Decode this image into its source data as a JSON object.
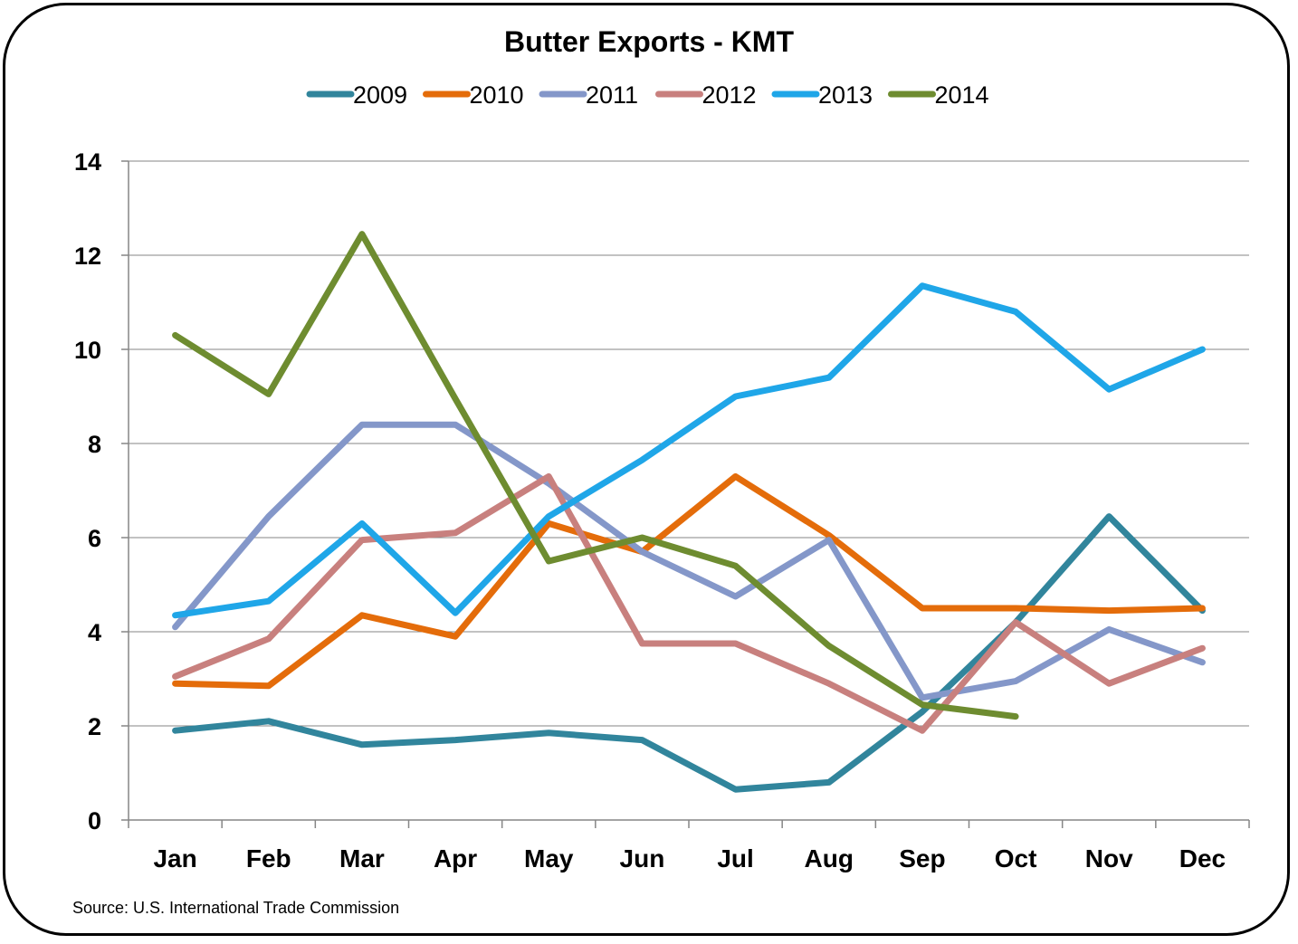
{
  "chart_data": {
    "type": "line",
    "title": "Butter Exports - KMT",
    "xlabel": "",
    "ylabel": "",
    "categories": [
      "Jan",
      "Feb",
      "Mar",
      "Apr",
      "May",
      "Jun",
      "Jul",
      "Aug",
      "Sep",
      "Oct",
      "Nov",
      "Dec"
    ],
    "ylim": [
      0,
      14
    ],
    "yticks": [
      0,
      2,
      4,
      6,
      8,
      10,
      12,
      14
    ],
    "grid": true,
    "legend_position": "top",
    "series": [
      {
        "name": "2009",
        "color": "#31859C",
        "values": [
          1.9,
          2.1,
          1.6,
          1.7,
          1.85,
          1.7,
          0.65,
          0.8,
          2.3,
          4.2,
          6.45,
          4.45
        ]
      },
      {
        "name": "2010",
        "color": "#E46C0A",
        "values": [
          2.9,
          2.85,
          4.35,
          3.9,
          6.3,
          5.7,
          7.3,
          6.05,
          4.5,
          4.5,
          4.45,
          4.5
        ]
      },
      {
        "name": "2011",
        "color": "#8497C9",
        "values": [
          4.1,
          6.45,
          8.4,
          8.4,
          7.15,
          5.7,
          4.75,
          5.95,
          2.6,
          2.95,
          4.05,
          3.35
        ]
      },
      {
        "name": "2012",
        "color": "#C8807E",
        "values": [
          3.05,
          3.85,
          5.95,
          6.1,
          7.3,
          3.75,
          3.75,
          2.9,
          1.9,
          4.2,
          2.9,
          3.65
        ]
      },
      {
        "name": "2013",
        "color": "#1FA6E8",
        "values": [
          4.35,
          4.65,
          6.3,
          4.4,
          6.45,
          7.65,
          9.0,
          9.4,
          11.35,
          10.8,
          9.15,
          10.0
        ]
      },
      {
        "name": "2014",
        "color": "#6E8C30",
        "values": [
          10.3,
          9.05,
          12.45,
          8.95,
          5.5,
          6.0,
          5.4,
          3.7,
          2.45,
          2.2,
          null,
          null
        ]
      }
    ],
    "annotations": [
      "Source: U.S. International Trade Commission"
    ]
  }
}
